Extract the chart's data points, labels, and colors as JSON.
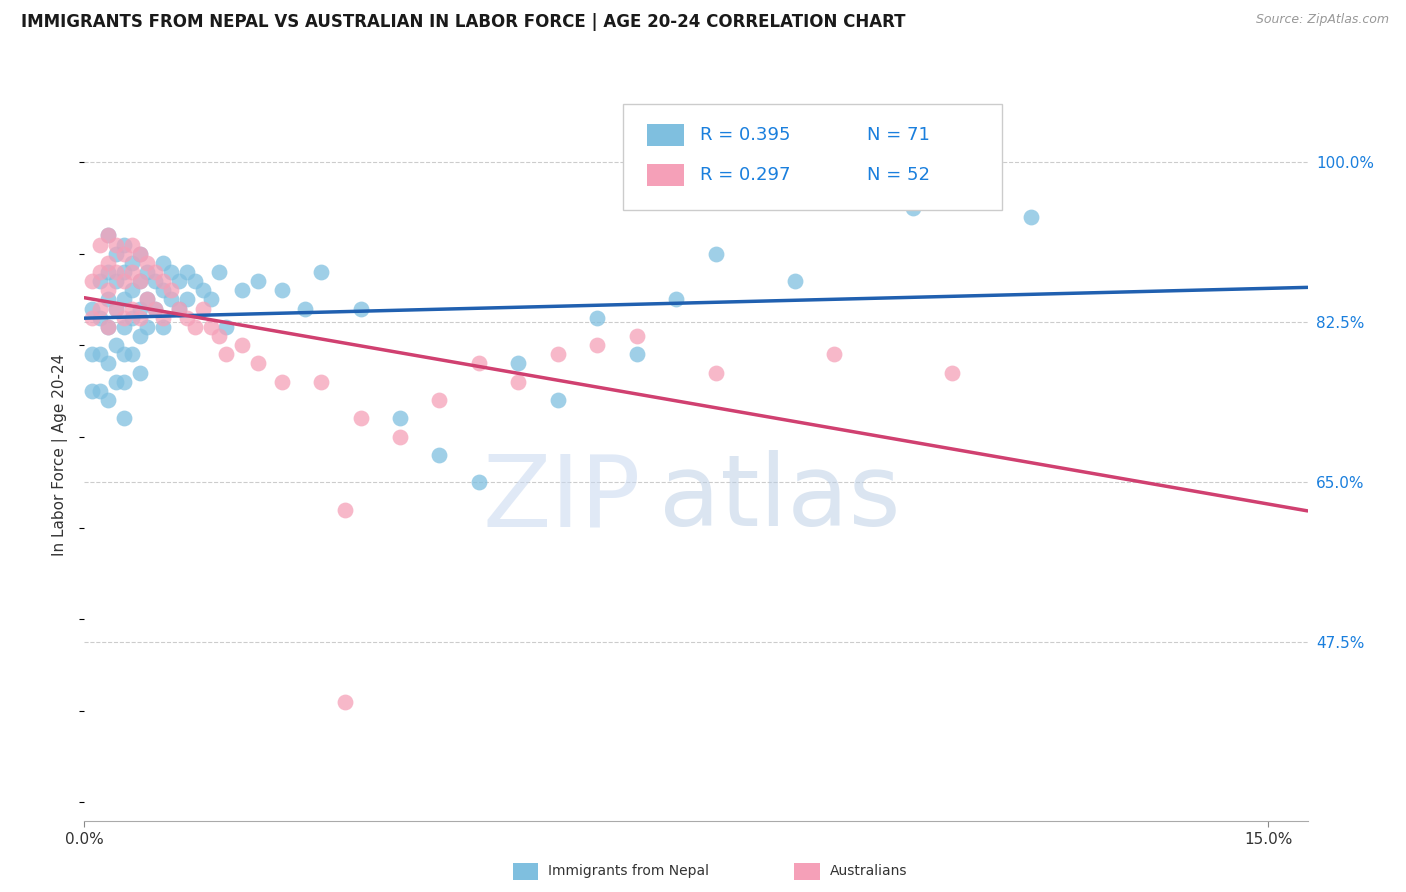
{
  "title": "IMMIGRANTS FROM NEPAL VS AUSTRALIAN IN LABOR FORCE | AGE 20-24 CORRELATION CHART",
  "source": "Source: ZipAtlas.com",
  "ylabel": "In Labor Force | Age 20-24",
  "xlim": [
    0.0,
    0.155
  ],
  "ylim": [
    0.28,
    1.08
  ],
  "yticks": [
    0.475,
    0.65,
    0.825,
    1.0
  ],
  "ytick_labels": [
    "47.5%",
    "65.0%",
    "82.5%",
    "100.0%"
  ],
  "xtick_left_label": "0.0%",
  "xtick_right_label": "15.0%",
  "legend_r_nepal": "0.395",
  "legend_n_nepal": "71",
  "legend_r_aus": "0.297",
  "legend_n_aus": "52",
  "color_nepal": "#7fbfdf",
  "color_aus": "#f5a0b8",
  "color_nepal_line": "#2060b0",
  "color_aus_line": "#d04070",
  "color_yticklabel": "#1a7fdd",
  "color_rvalue": "#1a7fdd",
  "color_nvalue": "#1a7fdd",
  "grid_color": "#cccccc",
  "nepal_x": [
    0.001,
    0.001,
    0.001,
    0.002,
    0.002,
    0.002,
    0.002,
    0.003,
    0.003,
    0.003,
    0.003,
    0.003,
    0.003,
    0.004,
    0.004,
    0.004,
    0.004,
    0.004,
    0.005,
    0.005,
    0.005,
    0.005,
    0.005,
    0.005,
    0.005,
    0.006,
    0.006,
    0.006,
    0.006,
    0.007,
    0.007,
    0.007,
    0.007,
    0.007,
    0.008,
    0.008,
    0.008,
    0.009,
    0.009,
    0.01,
    0.01,
    0.01,
    0.011,
    0.011,
    0.012,
    0.012,
    0.013,
    0.013,
    0.014,
    0.015,
    0.016,
    0.017,
    0.018,
    0.02,
    0.022,
    0.025,
    0.028,
    0.03,
    0.035,
    0.04,
    0.045,
    0.05,
    0.055,
    0.06,
    0.065,
    0.07,
    0.075,
    0.08,
    0.09,
    0.105,
    0.12
  ],
  "nepal_y": [
    0.84,
    0.79,
    0.75,
    0.87,
    0.83,
    0.79,
    0.75,
    0.92,
    0.88,
    0.85,
    0.82,
    0.78,
    0.74,
    0.9,
    0.87,
    0.84,
    0.8,
    0.76,
    0.91,
    0.88,
    0.85,
    0.82,
    0.79,
    0.76,
    0.72,
    0.89,
    0.86,
    0.83,
    0.79,
    0.9,
    0.87,
    0.84,
    0.81,
    0.77,
    0.88,
    0.85,
    0.82,
    0.87,
    0.84,
    0.89,
    0.86,
    0.82,
    0.88,
    0.85,
    0.87,
    0.84,
    0.88,
    0.85,
    0.87,
    0.86,
    0.85,
    0.88,
    0.82,
    0.86,
    0.87,
    0.86,
    0.84,
    0.88,
    0.84,
    0.72,
    0.68,
    0.65,
    0.78,
    0.74,
    0.83,
    0.79,
    0.85,
    0.9,
    0.87,
    0.95,
    0.94
  ],
  "aus_x": [
    0.001,
    0.001,
    0.002,
    0.002,
    0.002,
    0.003,
    0.003,
    0.003,
    0.003,
    0.004,
    0.004,
    0.004,
    0.005,
    0.005,
    0.005,
    0.006,
    0.006,
    0.006,
    0.007,
    0.007,
    0.007,
    0.008,
    0.008,
    0.009,
    0.009,
    0.01,
    0.01,
    0.011,
    0.012,
    0.013,
    0.014,
    0.015,
    0.016,
    0.017,
    0.018,
    0.02,
    0.022,
    0.025,
    0.03,
    0.035,
    0.04,
    0.045,
    0.05,
    0.055,
    0.06,
    0.065,
    0.07,
    0.08,
    0.095,
    0.11,
    0.033,
    0.033
  ],
  "aus_y": [
    0.87,
    0.83,
    0.91,
    0.88,
    0.84,
    0.92,
    0.89,
    0.86,
    0.82,
    0.91,
    0.88,
    0.84,
    0.9,
    0.87,
    0.83,
    0.91,
    0.88,
    0.84,
    0.9,
    0.87,
    0.83,
    0.89,
    0.85,
    0.88,
    0.84,
    0.87,
    0.83,
    0.86,
    0.84,
    0.83,
    0.82,
    0.84,
    0.82,
    0.81,
    0.79,
    0.8,
    0.78,
    0.76,
    0.76,
    0.72,
    0.7,
    0.74,
    0.78,
    0.76,
    0.79,
    0.8,
    0.81,
    0.77,
    0.79,
    0.77,
    0.62,
    0.41
  ]
}
